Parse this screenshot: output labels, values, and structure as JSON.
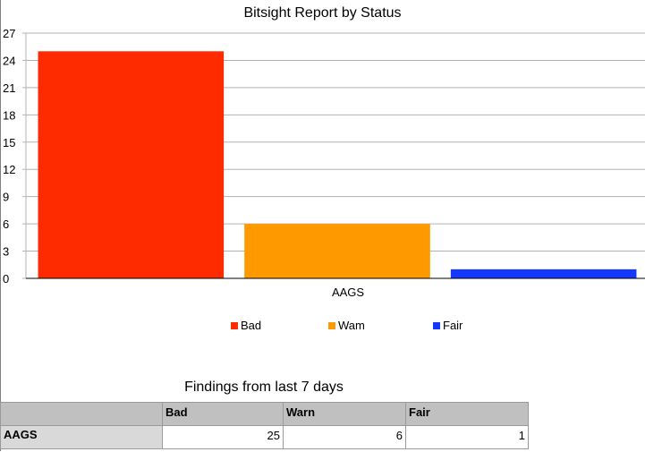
{
  "chart_data": {
    "type": "bar",
    "title": "Bitsight Report by Status",
    "categories": [
      "AAGS"
    ],
    "series": [
      {
        "name": "Bad",
        "values": [
          25
        ],
        "color": "#ff2b00"
      },
      {
        "name": "Warn",
        "values": [
          6
        ],
        "color": "#ff9900"
      },
      {
        "name": "Fair",
        "values": [
          1
        ],
        "color": "#1438ff"
      }
    ],
    "legend_labels": [
      "Bad",
      "Wam",
      "Fair"
    ],
    "ylim": [
      0,
      27
    ],
    "yticks": [
      0,
      3,
      6,
      9,
      12,
      15,
      18,
      21,
      24,
      27
    ],
    "grid": true,
    "legend_position": "bottom"
  },
  "table": {
    "title": "Findings from last 7 days",
    "headers": [
      "",
      "Bad",
      "Warn",
      "Fair"
    ],
    "rows": [
      {
        "label": "AAGS",
        "values": [
          25,
          6,
          1
        ]
      }
    ]
  }
}
